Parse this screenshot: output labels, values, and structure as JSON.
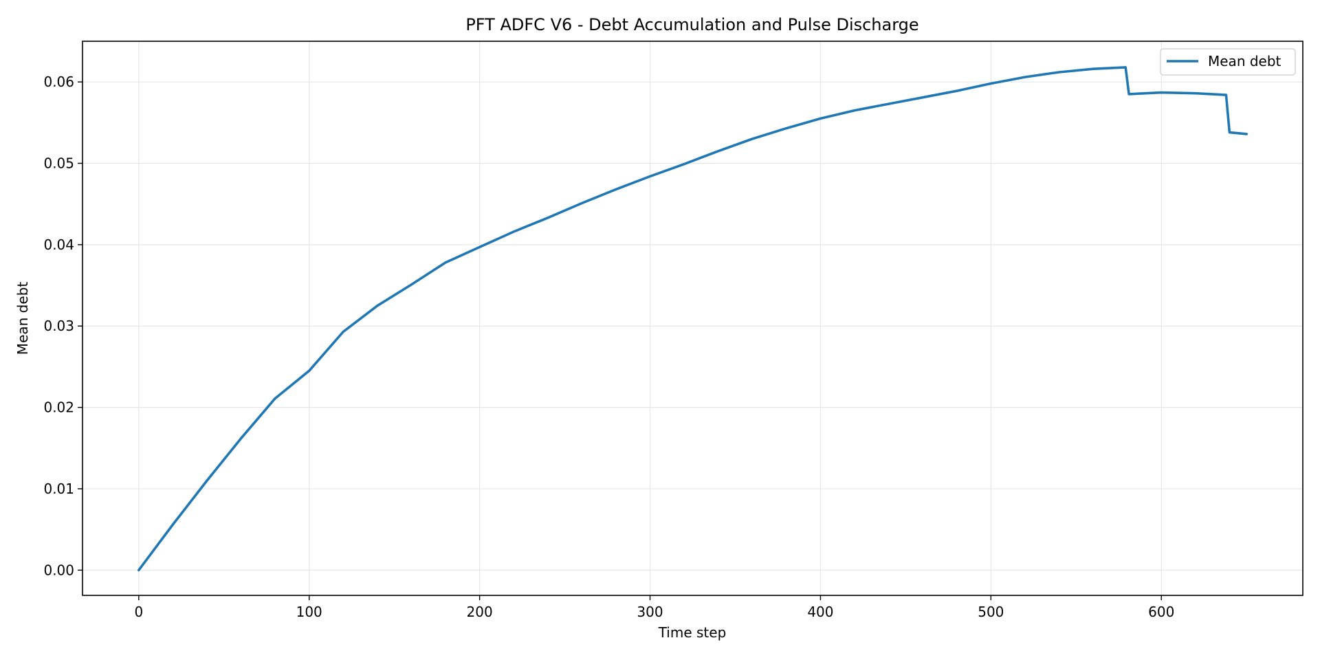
{
  "chart_data": {
    "type": "line",
    "title": "PFT ADFC V6 - Debt Accumulation and Pulse Discharge",
    "xlabel": "Time step",
    "ylabel": "Mean debt",
    "xlim": [
      -33,
      683
    ],
    "ylim": [
      -0.0031,
      0.065
    ],
    "xticks": [
      0,
      100,
      200,
      300,
      400,
      500,
      600
    ],
    "yticks": [
      0.0,
      0.01,
      0.02,
      0.03,
      0.04,
      0.05,
      0.06
    ],
    "xtick_labels": [
      "0",
      "100",
      "200",
      "300",
      "400",
      "500",
      "600"
    ],
    "ytick_labels": [
      "0.00",
      "0.01",
      "0.02",
      "0.03",
      "0.04",
      "0.05",
      "0.06"
    ],
    "grid": true,
    "legend_position": "upper right",
    "series": [
      {
        "name": "Mean debt",
        "color": "#1f77b4",
        "x": [
          0,
          20,
          40,
          60,
          80,
          100,
          120,
          140,
          160,
          180,
          200,
          220,
          240,
          260,
          280,
          300,
          320,
          340,
          360,
          380,
          400,
          420,
          440,
          460,
          480,
          500,
          520,
          540,
          560,
          579,
          581,
          600,
          620,
          638,
          640,
          650
        ],
        "y": [
          0.0,
          0.0056,
          0.011,
          0.0162,
          0.0211,
          0.0245,
          0.0293,
          0.0325,
          0.0351,
          0.0378,
          0.0397,
          0.0416,
          0.0433,
          0.0451,
          0.0468,
          0.0484,
          0.0499,
          0.0515,
          0.053,
          0.0543,
          0.0555,
          0.0565,
          0.0573,
          0.0581,
          0.0589,
          0.0598,
          0.0606,
          0.0612,
          0.0616,
          0.0618,
          0.0585,
          0.0587,
          0.0586,
          0.0584,
          0.0538,
          0.0536
        ]
      }
    ]
  }
}
